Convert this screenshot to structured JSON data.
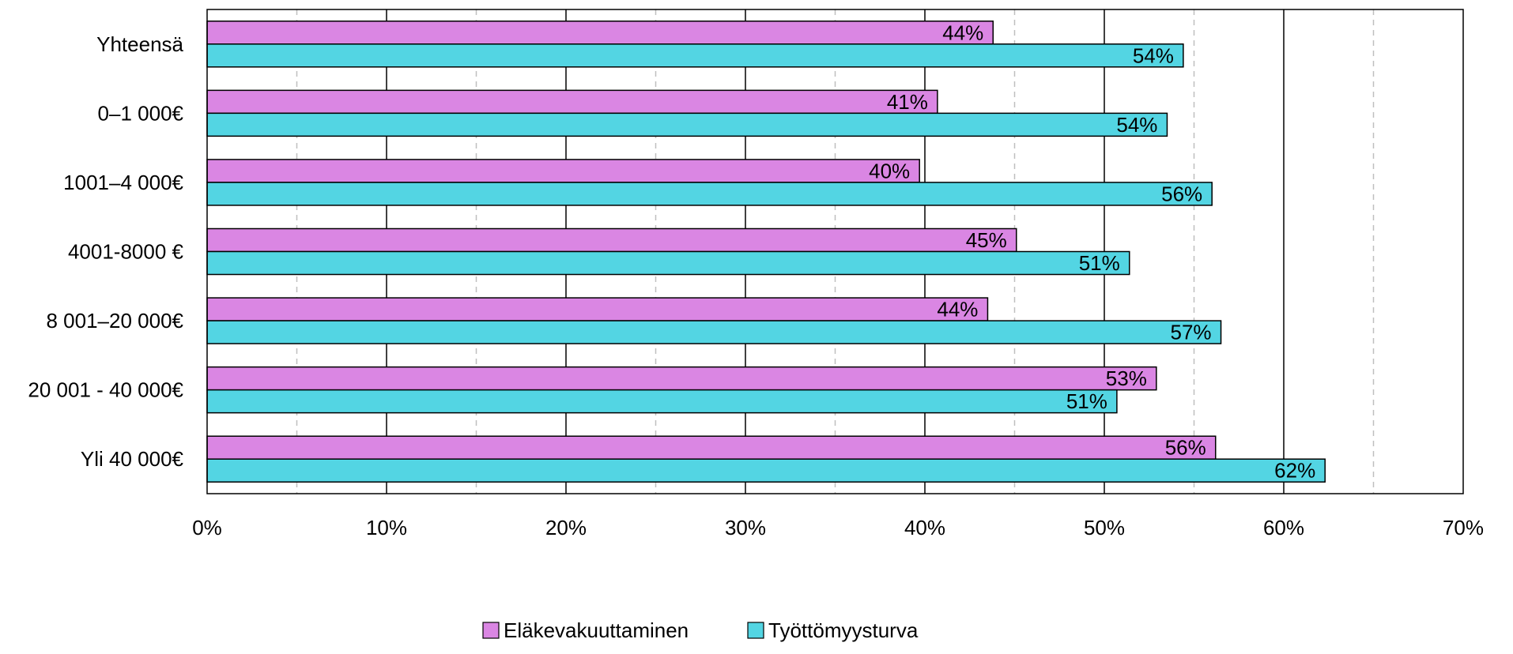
{
  "chart_data": {
    "type": "bar",
    "orientation": "horizontal",
    "categories": [
      "Yhteensä",
      "0–1 000€",
      "1001–4 000€",
      "4001-8000 €",
      "8 001–20 000€",
      "20 001 - 40 000€",
      "Yli 40 000€"
    ],
    "series": [
      {
        "name": "Eläkevakuuttaminen",
        "color": "#DA86E3",
        "values": [
          0.438,
          0.407,
          0.397,
          0.451,
          0.435,
          0.529,
          0.562
        ],
        "labels": [
          "44%",
          "41%",
          "40%",
          "45%",
          "44%",
          "53%",
          "56%"
        ]
      },
      {
        "name": "Työttömyysturva",
        "color": "#53D5E3",
        "values": [
          0.544,
          0.535,
          0.56,
          0.514,
          0.565,
          0.507,
          0.623
        ],
        "labels": [
          "54%",
          "54%",
          "56%",
          "51%",
          "57%",
          "51%",
          "62%"
        ]
      }
    ],
    "xlim": [
      0,
      0.7
    ],
    "x_ticks": [
      0,
      0.1,
      0.2,
      0.3,
      0.4,
      0.5,
      0.6,
      0.7
    ],
    "x_tick_labels": [
      "0%",
      "10%",
      "20%",
      "30%",
      "40%",
      "50%",
      "60%",
      "70%"
    ],
    "x_minor_ticks": [
      0.05,
      0.15,
      0.25,
      0.35,
      0.45,
      0.55,
      0.65
    ],
    "grid": {
      "major": "solid",
      "minor": "dashed"
    },
    "legend_position": "bottom-center",
    "title": "",
    "xlabel": "",
    "ylabel": ""
  }
}
